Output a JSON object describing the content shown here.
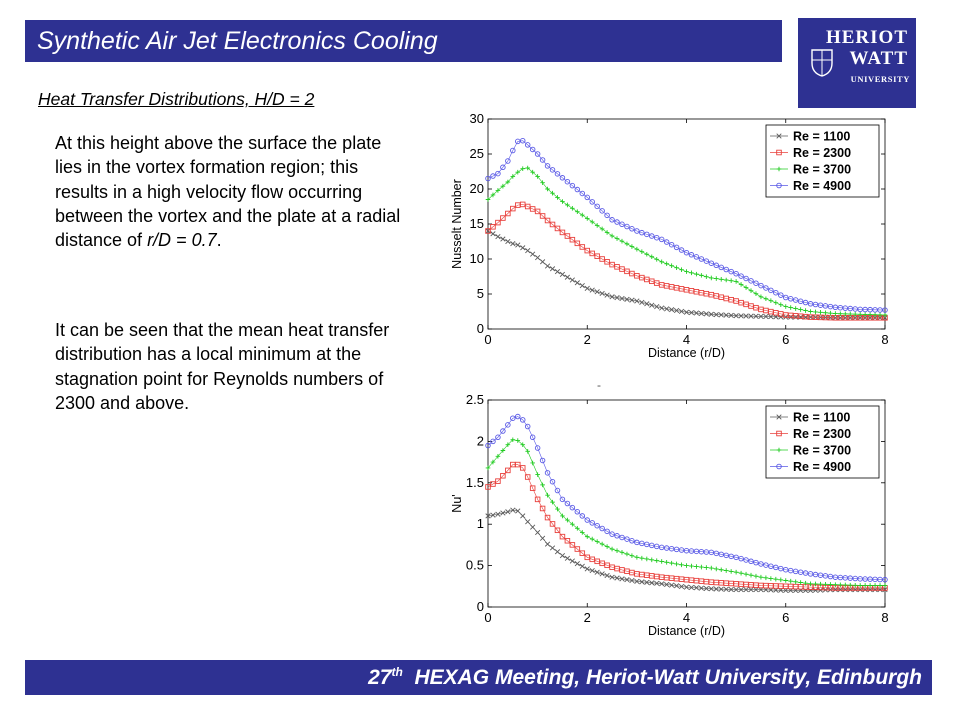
{
  "slide": {
    "title": "Synthetic Air Jet Electronics Cooling",
    "heading": "Heat Transfer Distributions, H/D = 2",
    "para1_pre": "At this height above the surface the plate lies in the vortex formation region; this results in a high velocity flow occurring between the vortex and the plate at a radial distance of ",
    "para1_em": "r/D = 0.7",
    "para1_post": ".",
    "para2": "It can be seen that the mean heat transfer distribution has a local minimum at the stagnation point for Reynolds numbers of 2300 and above.",
    "footer_ordinal": "27",
    "footer_sup": "th",
    "footer_rest": "HEXAG Meeting, Heriot-Watt University, Edinburgh",
    "stray_mark": "-"
  },
  "logo": {
    "line1": "HERIOT",
    "line2": "WATT",
    "line3": "UNIVERSITY"
  },
  "chart_data": [
    {
      "type": "line",
      "xlabel": "Distance (r/D)",
      "ylabel": "Nusselt Number",
      "xlim": [
        0,
        8
      ],
      "ylim": [
        0,
        30
      ],
      "xticks": [
        0,
        2,
        4,
        6,
        8
      ],
      "yticks": [
        0,
        5,
        10,
        15,
        20,
        25,
        30
      ],
      "legend_position": "top-right",
      "grid": false,
      "x": [
        0,
        0.2,
        0.4,
        0.5,
        0.6,
        0.7,
        0.8,
        1.0,
        1.2,
        1.5,
        2.0,
        2.5,
        3.0,
        3.5,
        4.0,
        4.5,
        5.0,
        5.5,
        6.0,
        6.5,
        7.0,
        7.5,
        8.0
      ],
      "series": [
        {
          "name": "Re = 1100",
          "color": "#5a5a5a",
          "marker": "x",
          "values": [
            14,
            13.2,
            12.5,
            12.2,
            12.0,
            11.6,
            11.2,
            10.2,
            9.0,
            7.8,
            5.8,
            4.6,
            4.0,
            3.0,
            2.4,
            2.1,
            1.9,
            1.8,
            1.7,
            1.7,
            1.6,
            1.6,
            1.6
          ]
        },
        {
          "name": "Re = 2300",
          "color": "#e8403c",
          "marker": "s",
          "values": [
            14,
            15.2,
            16.5,
            17.2,
            17.7,
            17.8,
            17.5,
            16.8,
            15.5,
            13.8,
            11.2,
            9.2,
            7.6,
            6.3,
            5.6,
            4.9,
            4.0,
            2.8,
            2.0,
            1.7,
            1.6,
            1.6,
            1.6
          ]
        },
        {
          "name": "Re = 3700",
          "color": "#22cc22",
          "marker": "+",
          "values": [
            18.5,
            19.8,
            21.0,
            21.8,
            22.4,
            22.9,
            23.0,
            21.8,
            20.0,
            18.2,
            15.8,
            13.3,
            11.4,
            9.6,
            8.2,
            7.3,
            6.8,
            4.6,
            3.2,
            2.5,
            2.2,
            2.1,
            2.0
          ]
        },
        {
          "name": "Re = 4900",
          "color": "#5a5ae6",
          "marker": "o",
          "values": [
            21.5,
            22.2,
            24.0,
            25.5,
            26.8,
            26.9,
            26.3,
            25.0,
            23.3,
            21.6,
            18.8,
            15.6,
            14.0,
            12.8,
            10.9,
            9.4,
            7.9,
            6.2,
            4.5,
            3.6,
            3.1,
            2.8,
            2.7
          ]
        }
      ]
    },
    {
      "type": "line",
      "xlabel": "Distance (r/D)",
      "ylabel": "Nu'",
      "xlim": [
        0,
        8
      ],
      "ylim": [
        0,
        2.5
      ],
      "xticks": [
        0,
        2,
        4,
        6,
        8
      ],
      "yticks": [
        0,
        0.5,
        1,
        1.5,
        2,
        2.5
      ],
      "legend_position": "top-right",
      "grid": false,
      "x": [
        0,
        0.2,
        0.4,
        0.5,
        0.6,
        0.7,
        0.8,
        1.0,
        1.2,
        1.5,
        2.0,
        2.5,
        3.0,
        3.5,
        4.0,
        4.5,
        5.0,
        5.5,
        6.0,
        6.5,
        7.0,
        7.5,
        8.0
      ],
      "series": [
        {
          "name": "Re = 1100",
          "color": "#5a5a5a",
          "marker": "x",
          "values": [
            1.1,
            1.12,
            1.15,
            1.17,
            1.16,
            1.1,
            1.03,
            0.9,
            0.76,
            0.62,
            0.46,
            0.36,
            0.31,
            0.28,
            0.24,
            0.22,
            0.21,
            0.21,
            0.2,
            0.2,
            0.21,
            0.21,
            0.21
          ]
        },
        {
          "name": "Re = 2300",
          "color": "#e8403c",
          "marker": "s",
          "values": [
            1.45,
            1.52,
            1.65,
            1.72,
            1.72,
            1.68,
            1.57,
            1.3,
            1.08,
            0.85,
            0.6,
            0.48,
            0.4,
            0.36,
            0.33,
            0.3,
            0.28,
            0.26,
            0.25,
            0.24,
            0.23,
            0.23,
            0.23
          ]
        },
        {
          "name": "Re = 3700",
          "color": "#22cc22",
          "marker": "+",
          "values": [
            1.68,
            1.82,
            1.96,
            2.02,
            2.01,
            1.96,
            1.88,
            1.6,
            1.35,
            1.1,
            0.85,
            0.7,
            0.6,
            0.55,
            0.5,
            0.47,
            0.42,
            0.36,
            0.32,
            0.28,
            0.27,
            0.26,
            0.26
          ]
        },
        {
          "name": "Re = 4900",
          "color": "#5a5ae6",
          "marker": "o",
          "values": [
            1.95,
            2.05,
            2.2,
            2.28,
            2.3,
            2.26,
            2.18,
            1.92,
            1.62,
            1.3,
            1.05,
            0.88,
            0.78,
            0.72,
            0.68,
            0.66,
            0.6,
            0.52,
            0.45,
            0.4,
            0.36,
            0.34,
            0.33
          ]
        }
      ]
    }
  ]
}
